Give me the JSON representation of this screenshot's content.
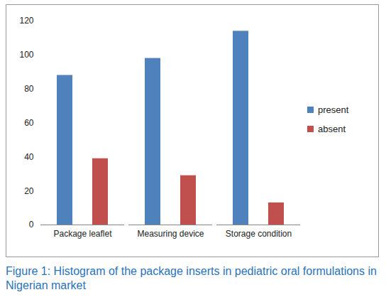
{
  "chart_data": {
    "type": "bar",
    "caption": "Figure 1: Histogram of the package inserts in pediatric oral formulations in Nigerian market",
    "categories": [
      "Package leaflet",
      "Measuring device",
      "Storage condition"
    ],
    "series": [
      {
        "name": "present",
        "color": "#4f81bd",
        "values": [
          88,
          98,
          114
        ]
      },
      {
        "name": "absent",
        "color": "#c0504d",
        "values": [
          39,
          29,
          13
        ]
      }
    ],
    "ylim": [
      0,
      120
    ],
    "yticks": [
      0,
      20,
      40,
      60,
      80,
      100,
      120
    ],
    "grid": false,
    "legend": "right"
  }
}
